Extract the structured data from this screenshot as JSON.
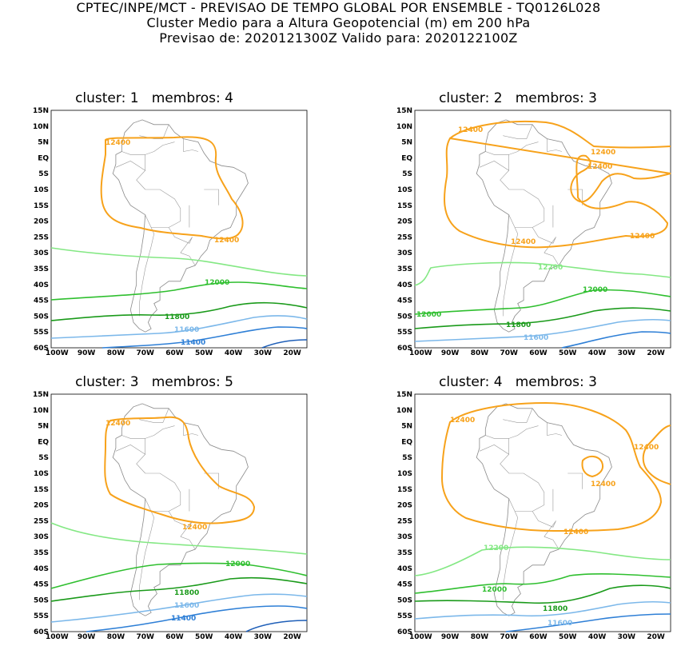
{
  "header": {
    "line1": "CPTEC/INPE/MCT - PREVISAO DE TEMPO GLOBAL POR ENSEMBLE - TQ0126L028",
    "line2": "Cluster Medio para a Altura Geopotencial (m) em 200 hPa",
    "line3": "Previsao de: 2020121300Z    Valido para: 2020122100Z"
  },
  "axes": {
    "lat_labels": [
      "15N",
      "10N",
      "5N",
      "EQ",
      "5S",
      "10S",
      "15S",
      "20S",
      "25S",
      "30S",
      "35S",
      "40S",
      "45S",
      "50S",
      "55S",
      "60S"
    ],
    "lon_labels": [
      "100W",
      "90W",
      "80W",
      "70W",
      "60W",
      "50W",
      "40W",
      "30W",
      "20W"
    ]
  },
  "colors": {
    "c12400": "#f7a21b",
    "c12200": "#84e884",
    "c12000": "#2fbf2f",
    "c11800": "#1a9a1a",
    "c11600": "#7cb8ea",
    "c11400": "#2e7fd6",
    "c11200": "#1f5fb8",
    "coast": "#8a8a8a"
  },
  "panels": [
    {
      "title": "cluster: 1   membros: 4",
      "labels": [
        {
          "text": "12400",
          "color": "c12400"
        },
        {
          "text": "12400",
          "color": "c12400"
        },
        {
          "text": "12000",
          "color": "c12000"
        },
        {
          "text": "11800",
          "color": "c11800"
        },
        {
          "text": "11600",
          "color": "c11600"
        },
        {
          "text": "11400",
          "color": "c11400"
        }
      ]
    },
    {
      "title": "cluster: 2   membros: 3",
      "labels": [
        {
          "text": "12400",
          "color": "c12400"
        },
        {
          "text": "12400",
          "color": "c12400"
        },
        {
          "text": "12400",
          "color": "c12400"
        },
        {
          "text": "12400",
          "color": "c12400"
        },
        {
          "text": "12400",
          "color": "c12400"
        },
        {
          "text": "12200",
          "color": "c12200"
        },
        {
          "text": "12000",
          "color": "c12000"
        },
        {
          "text": "12000",
          "color": "c12000"
        },
        {
          "text": "11800",
          "color": "c11800"
        },
        {
          "text": "11600",
          "color": "c11600"
        }
      ]
    },
    {
      "title": "cluster: 3   membros: 5",
      "labels": [
        {
          "text": "12400",
          "color": "c12400"
        },
        {
          "text": "12400",
          "color": "c12400"
        },
        {
          "text": "12000",
          "color": "c12000"
        },
        {
          "text": "11800",
          "color": "c11800"
        },
        {
          "text": "11600",
          "color": "c11600"
        },
        {
          "text": "11400",
          "color": "c11400"
        }
      ]
    },
    {
      "title": "cluster: 4   membros: 3",
      "labels": [
        {
          "text": "12400",
          "color": "c12400"
        },
        {
          "text": "12400",
          "color": "c12400"
        },
        {
          "text": "12400",
          "color": "c12400"
        },
        {
          "text": "12400",
          "color": "c12400"
        },
        {
          "text": "12200",
          "color": "c12200"
        },
        {
          "text": "12000",
          "color": "c12000"
        },
        {
          "text": "11800",
          "color": "c11800"
        },
        {
          "text": "11600",
          "color": "c11600"
        }
      ]
    }
  ]
}
